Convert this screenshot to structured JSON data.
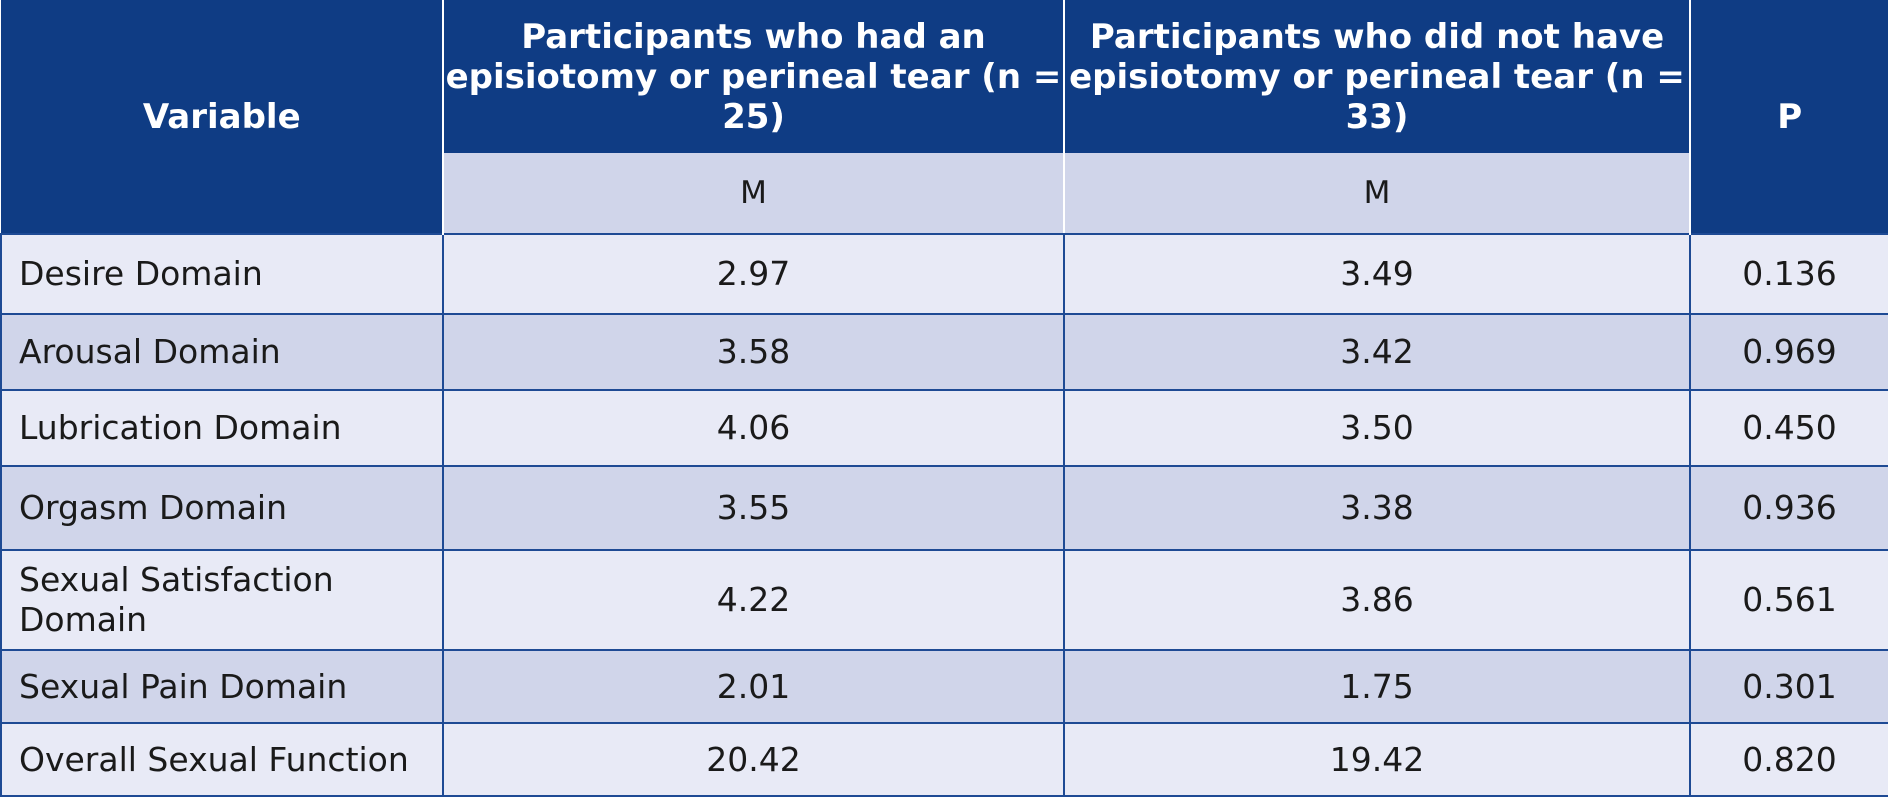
{
  "table": {
    "headers": {
      "variable": "Variable",
      "group1": "Participants who had an episiotomy or perineal tear (n = 25)",
      "group2": "Participants who did not have episiotomy or perineal tear (n = 33)",
      "p": "P"
    },
    "subheaders": {
      "group1": "M",
      "group2": "M"
    },
    "rows": [
      {
        "variable": "Desire Domain",
        "group1": "2.97",
        "group2": "3.49",
        "p": "0.136"
      },
      {
        "variable": "Arousal Domain",
        "group1": "3.58",
        "group2": "3.42",
        "p": "0.969"
      },
      {
        "variable": "Lubrication Domain",
        "group1": "4.06",
        "group2": "3.50",
        "p": "0.450"
      },
      {
        "variable": "Orgasm Domain",
        "group1": "3.55",
        "group2": "3.38",
        "p": "0.936"
      },
      {
        "variable": "Sexual Satisfaction Domain",
        "group1": "4.22",
        "group2": "3.86",
        "p": "0.561"
      },
      {
        "variable": "Sexual Pain Domain",
        "group1": "2.01",
        "group2": "1.75",
        "p": "0.301"
      },
      {
        "variable": "Overall Sexual Function",
        "group1": "20.42",
        "group2": "19.42",
        "p": "0.820"
      }
    ]
  }
}
